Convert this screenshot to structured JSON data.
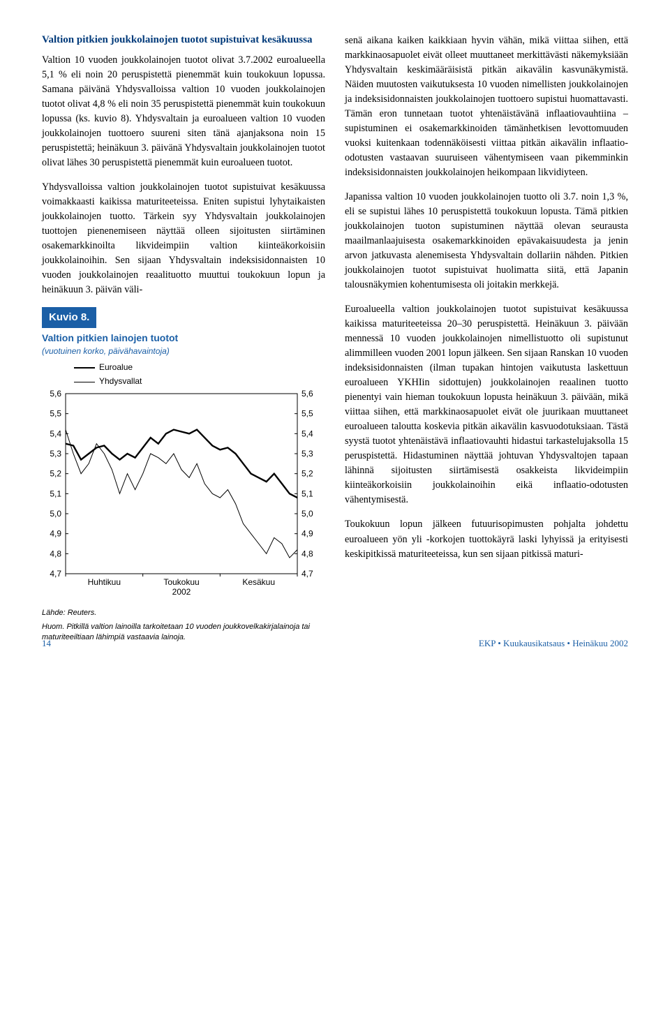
{
  "section_title": "Valtion pitkien joukkolainojen tuotot supistuivat kesäkuussa",
  "col_left": {
    "p1": "Valtion 10 vuoden joukkolainojen tuotot olivat 3.7.2002 euroalueella 5,1 % eli noin 20 peruspistettä pienemmät kuin toukokuun lopussa. Samana päivänä Yhdysvalloissa valtion 10 vuoden joukkolainojen tuotot olivat 4,8 % eli noin 35 peruspistettä pienemmät kuin toukokuun lopussa (ks. kuvio 8). Yhdysvaltain ja euroalueen valtion 10 vuoden joukkolainojen tuottoero suureni siten tänä ajanjaksona noin 15 peruspistettä; heinäkuun 3. päivänä Yhdysvaltain joukkolainojen tuotot olivat lähes 30 peruspistettä pienemmät kuin euroalueen tuotot.",
    "p2": "Yhdysvalloissa valtion joukkolainojen tuotot supistuivat kesäkuussa voimakkaasti kaikissa maturiteeteissa. Eniten supistui lyhytaikaisten joukkolainojen tuotto. Tärkein syy Yhdysvaltain joukkolainojen tuottojen pienenemiseen näyttää olleen sijoitusten siirtäminen osakemarkkinoilta likvideimpiin valtion kiinteäkorkoisiin joukkolainoihin. Sen sijaan Yhdysvaltain indeksisidonnaisten 10 vuoden joukkolainojen reaalituotto muuttui toukokuun lopun ja heinäkuun 3. päivän väli-"
  },
  "col_right": {
    "p1": "senä aikana kaiken kaikkiaan hyvin vähän, mikä viittaa siihen, että markkinaosapuolet eivät olleet muuttaneet merkittävästi näkemyksiään Yhdysvaltain keskimääräisistä pitkän aikavälin kasvunäkymistä. Näiden muutosten vaikutuksesta 10 vuoden nimellisten joukkolainojen ja indeksisidonnaisten joukkolainojen tuottoero supistui huomattavasti. Tämän eron tunnetaan tuotot yhtenäistävänä inflaatiovauhtiina – supistuminen ei osakemarkkinoiden tämänhetkisen levottomuuden vuoksi kuitenkaan todennäköisesti viittaa pitkän aikavälin inflaatio-odotusten vastaavan suuruiseen vähentymiseen vaan pikemminkin indeksisidonnaisten joukkolainojen heikompaan likvidiyteen.",
    "p2": "Japanissa valtion 10 vuoden joukkolainojen tuotto oli 3.7. noin 1,3 %, eli se supistui lähes 10 peruspistettä toukokuun lopusta. Tämä pitkien joukkolainojen tuoton supistuminen näyttää olevan seurausta maailmanlaajuisesta osakemarkkinoiden epävakaisuudesta ja jenin arvon jatkuvasta alenemisesta Yhdysvaltain dollariin nähden. Pitkien joukkolainojen tuotot supistuivat huolimatta siitä, että Japanin talousnäkymien kohentumisesta oli joitakin merkkejä.",
    "p3": "Euroalueella valtion joukkolainojen tuotot supistuivat kesäkuussa kaikissa maturiteeteissa 20–30 peruspistettä. Heinäkuun 3. päivään mennessä 10 vuoden joukkolainojen nimellistuotto oli supistunut alimmilleen vuoden 2001 lopun jälkeen. Sen sijaan Ranskan 10 vuoden indeksisidonnaisten (ilman tupakan hintojen vaikutusta laskettuun euroalueen YKHIin sidottujen) joukkolainojen reaalinen tuotto pienentyi vain hieman toukokuun lopusta heinäkuun 3. päivään, mikä viittaa siihen, että markkinaosapuolet eivät ole juurikaan muuttaneet euroalueen taloutta koskevia pitkän aikavälin kasvuodotuksiaan. Tästä syystä tuotot yhtenäistävä inflaatiovauhti hidastui tarkastelujaksolla 15 peruspistettä. Hidastuminen näyttää johtuvan Yhdysvaltojen tapaan lähinnä sijoitusten siirtämisestä osakkeista likvideimpiin kiinteäkorkoisiin joukkolainoihin eikä inflaatio-odotusten vähentymisestä.",
    "p4": "Toukokuun lopun jälkeen futuurisopimusten pohjalta johdettu euroalueen yön yli -korkojen tuottokäyrä laski lyhyissä ja erityisesti keskipitkissä maturiteeteissa, kun sen sijaan pitkissä maturi-"
  },
  "chart": {
    "title_bar": "Kuvio 8.",
    "subtitle": "Valtion pitkien lainojen tuotot",
    "subsub": "(vuotuinen korko, päivähavaintoja)",
    "legend": {
      "euro": "Euroalue",
      "us": "Yhdysvallat"
    },
    "yticks": [
      "5,6",
      "5,5",
      "5,4",
      "5,3",
      "5,2",
      "5,1",
      "5,0",
      "4,9",
      "4,8",
      "4,7"
    ],
    "ylim": [
      4.7,
      5.6
    ],
    "xlabels": [
      "Huhtikuu",
      "Toukokuu",
      "Kesäkuu"
    ],
    "xyear": "2002",
    "background_color": "#ffffff",
    "axis_color": "#000000",
    "font_size_axis": 12,
    "series": {
      "euroalue": {
        "color": "#000000",
        "width": 2.4,
        "points": [
          [
            0,
            5.35
          ],
          [
            3,
            5.34
          ],
          [
            6,
            5.27
          ],
          [
            9,
            5.3
          ],
          [
            12,
            5.33
          ],
          [
            15,
            5.34
          ],
          [
            18,
            5.3
          ],
          [
            21,
            5.27
          ],
          [
            24,
            5.3
          ],
          [
            27,
            5.28
          ],
          [
            30,
            5.33
          ],
          [
            33,
            5.38
          ],
          [
            36,
            5.35
          ],
          [
            39,
            5.4
          ],
          [
            42,
            5.42
          ],
          [
            45,
            5.41
          ],
          [
            48,
            5.4
          ],
          [
            51,
            5.42
          ],
          [
            54,
            5.38
          ],
          [
            57,
            5.34
          ],
          [
            60,
            5.32
          ],
          [
            63,
            5.33
          ],
          [
            66,
            5.3
          ],
          [
            69,
            5.25
          ],
          [
            72,
            5.2
          ],
          [
            75,
            5.18
          ],
          [
            78,
            5.16
          ],
          [
            81,
            5.2
          ],
          [
            84,
            5.15
          ],
          [
            87,
            5.1
          ],
          [
            90,
            5.08
          ]
        ]
      },
      "yhdysvallat": {
        "color": "#000000",
        "width": 1.0,
        "points": [
          [
            0,
            5.42
          ],
          [
            3,
            5.3
          ],
          [
            6,
            5.2
          ],
          [
            9,
            5.25
          ],
          [
            12,
            5.35
          ],
          [
            15,
            5.3
          ],
          [
            18,
            5.22
          ],
          [
            21,
            5.1
          ],
          [
            24,
            5.2
          ],
          [
            27,
            5.12
          ],
          [
            30,
            5.2
          ],
          [
            33,
            5.3
          ],
          [
            36,
            5.28
          ],
          [
            39,
            5.25
          ],
          [
            42,
            5.3
          ],
          [
            45,
            5.22
          ],
          [
            48,
            5.18
          ],
          [
            51,
            5.25
          ],
          [
            54,
            5.15
          ],
          [
            57,
            5.1
          ],
          [
            60,
            5.08
          ],
          [
            63,
            5.12
          ],
          [
            66,
            5.05
          ],
          [
            69,
            4.95
          ],
          [
            72,
            4.9
          ],
          [
            75,
            4.85
          ],
          [
            78,
            4.8
          ],
          [
            81,
            4.88
          ],
          [
            84,
            4.85
          ],
          [
            87,
            4.78
          ],
          [
            90,
            4.82
          ]
        ]
      }
    },
    "note1": "Lähde: Reuters.",
    "note2": "Huom. Pitkillä valtion lainoilla tarkoitetaan 10 vuoden joukkovelkakirjalainoja tai maturiteeiltiaan lähimpiä vastaavia lainoja."
  },
  "footer": {
    "page": "14",
    "right": "EKP • Kuukausikatsaus • Heinäkuu 2002"
  }
}
